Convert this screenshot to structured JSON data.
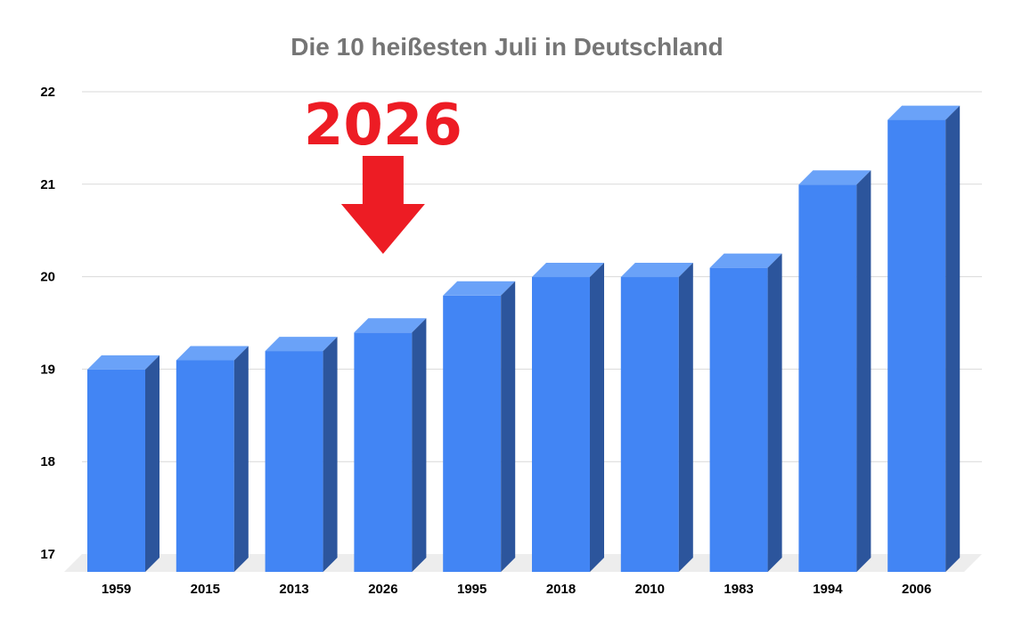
{
  "chart_data": {
    "type": "bar",
    "title": "Die 10 heißesten Juli in Deutschland",
    "categories": [
      "1959",
      "2015",
      "2013",
      "2026",
      "1995",
      "2018",
      "2010",
      "1983",
      "1994",
      "2006"
    ],
    "values": [
      19.15,
      19.25,
      19.35,
      19.55,
      19.95,
      20.15,
      20.15,
      20.25,
      21.15,
      21.85
    ],
    "ylim": [
      17,
      22
    ],
    "yticks": [
      "17",
      "18",
      "19",
      "20",
      "21",
      "22"
    ],
    "grid": true,
    "style": "3d-bar",
    "colors": {
      "bar_front": "#4285f4",
      "bar_top": "#6aa2f8",
      "bar_side": "#2c559c",
      "floor": "#ededed"
    },
    "annotation": {
      "text": "2026",
      "target_category": "2026",
      "color": "#ed1c24"
    }
  }
}
